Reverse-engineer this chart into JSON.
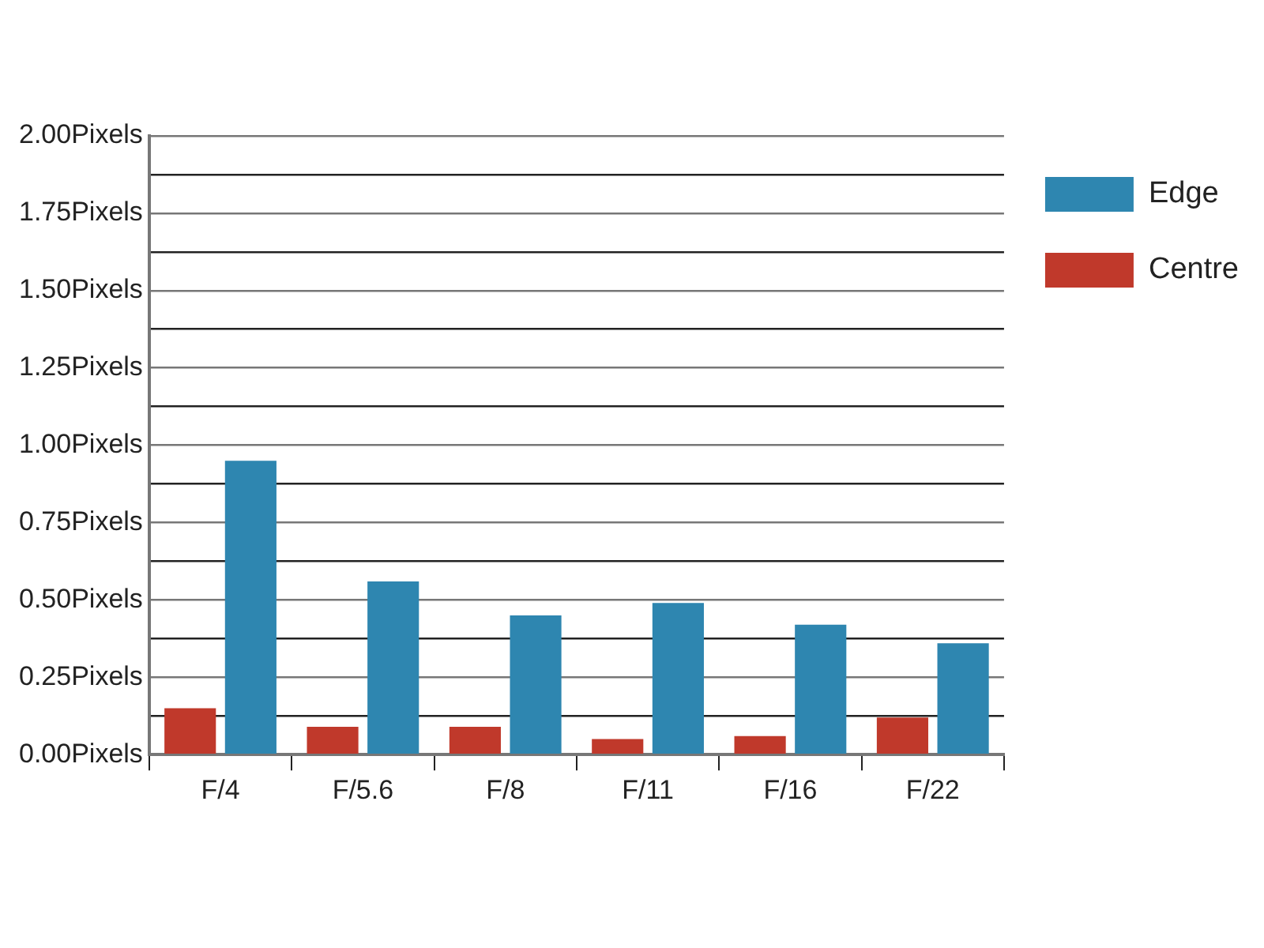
{
  "chart_data": {
    "type": "bar",
    "categories": [
      "F/4",
      "F/5.6",
      "F/8",
      "F/11",
      "F/16",
      "F/22"
    ],
    "series": [
      {
        "name": "Centre",
        "color": "#c0392b",
        "values": [
          0.15,
          0.09,
          0.09,
          0.05,
          0.06,
          0.12
        ]
      },
      {
        "name": "Edge",
        "color": "#2e86b0",
        "values": [
          0.95,
          0.56,
          0.45,
          0.49,
          0.42,
          0.36
        ]
      }
    ],
    "ylim": [
      0,
      2
    ],
    "yticks": [
      {
        "value": 0,
        "label": "0.00Pixels"
      },
      {
        "value": 0.125,
        "label": null
      },
      {
        "value": 0.25,
        "label": "0.25Pixels"
      },
      {
        "value": 0.375,
        "label": null
      },
      {
        "value": 0.5,
        "label": "0.50Pixels"
      },
      {
        "value": 0.625,
        "label": null
      },
      {
        "value": 0.75,
        "label": "0.75Pixels"
      },
      {
        "value": 0.875,
        "label": null
      },
      {
        "value": 1,
        "label": "1.00Pixels"
      },
      {
        "value": 1.125,
        "label": null
      },
      {
        "value": 1.25,
        "label": "1.25Pixels"
      },
      {
        "value": 1.375,
        "label": null
      },
      {
        "value": 1.5,
        "label": "1.50Pixels"
      },
      {
        "value": 1.625,
        "label": null
      },
      {
        "value": 1.75,
        "label": "1.75Pixels"
      },
      {
        "value": 1.875,
        "label": null
      },
      {
        "value": 2,
        "label": "2.00Pixels"
      }
    ],
    "grid": "y",
    "legend": "top right"
  }
}
